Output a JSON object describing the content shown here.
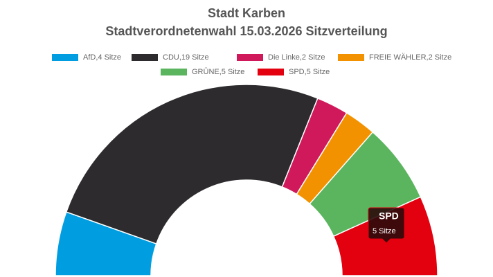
{
  "chart_data": {
    "type": "semicircle",
    "title": "Stadt Karben",
    "subtitle": "Stadtverordnetenwahl 15.03.2026 Sitzverteilung",
    "labels": [
      "AfD,4 Sitze",
      "CDU,19 Sitze",
      "Die Linke,2 Sitze",
      "FREIE WÄHLER,2 Sitze",
      "GRÜNE,5 Sitze",
      "SPD,5 Sitze"
    ],
    "values": [
      4,
      19,
      2,
      2,
      5,
      5
    ],
    "colors": [
      "#009ee0",
      "#2d2b2d",
      "#d0195b",
      "#f39200",
      "#5ab55e",
      "#e3000f"
    ],
    "tooltip": {
      "title": "SPD",
      "text": "5 Sitze"
    }
  }
}
